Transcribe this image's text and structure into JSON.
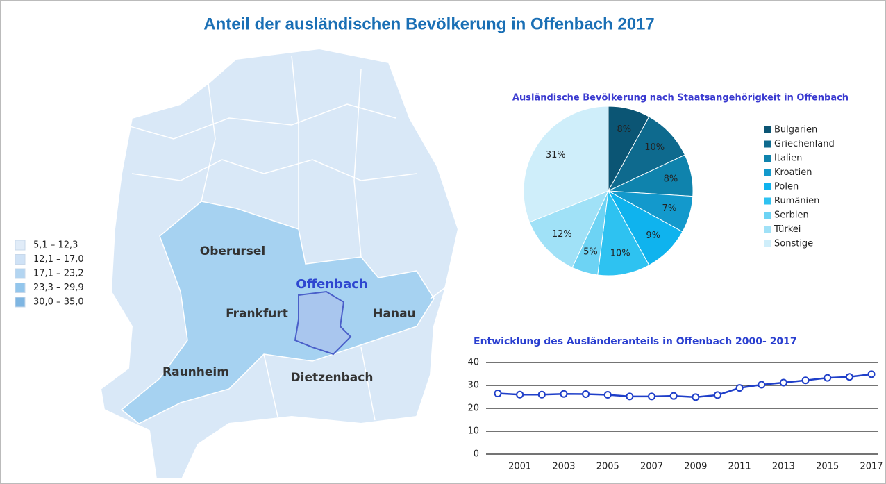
{
  "title": "Anteil der ausländischen Bevölkerung in Offenbach 2017",
  "map": {
    "legend": [
      {
        "label": "5,1 – 12,3",
        "color": "#e1ecf8"
      },
      {
        "label": "12,1 – 17,0",
        "color": "#cfe2f6"
      },
      {
        "label": "17,1 – 23,2",
        "color": "#b3d5f1"
      },
      {
        "label": "23,3 – 29,9",
        "color": "#93c6ec"
      },
      {
        "label": "30,0 – 35,0",
        "color": "#7fb6e2"
      }
    ],
    "places": [
      "Oberursel",
      "Frankfurt",
      "Offenbach",
      "Hanau",
      "Raunheim",
      "Dietzenbach"
    ]
  },
  "chart_data": [
    {
      "type": "pie",
      "title": "Ausländische Bevölkerung nach Staatsangehörigkeit in Offenbach",
      "categories": [
        "Bulgarien",
        "Griechenland",
        "Italien",
        "Kroatien",
        "Polen",
        "Rumänien",
        "Serbien",
        "Türkei",
        "Sonstige"
      ],
      "values": [
        8,
        10,
        8,
        7,
        9,
        10,
        5,
        12,
        31
      ],
      "value_labels": [
        "8%",
        "10%",
        "8%",
        "7%",
        "9%",
        "10%",
        "5%",
        "12%",
        "31%"
      ],
      "colors": [
        "#0b5574",
        "#0e6a8e",
        "#0f83ad",
        "#1399cc",
        "#0fb3ee",
        "#2ec2f1",
        "#6dd3f4",
        "#a0e1f7",
        "#cfeefa"
      ],
      "legend": "right"
    },
    {
      "type": "line",
      "title": "Entwicklung des Ausländeranteils in Offenbach 2000- 2017",
      "x": [
        2000,
        2001,
        2002,
        2003,
        2004,
        2005,
        2006,
        2007,
        2008,
        2009,
        2010,
        2011,
        2012,
        2013,
        2014,
        2015,
        2016,
        2017
      ],
      "values": [
        26.5,
        26,
        26,
        26.3,
        26.2,
        25.9,
        25.2,
        25.2,
        25.4,
        24.9,
        25.8,
        28.9,
        30.3,
        31.2,
        32.2,
        33.3,
        33.7,
        34.9
      ],
      "color": "#1f3fc9",
      "xlim": [
        2000,
        2017
      ],
      "xticks": [
        2001,
        2003,
        2005,
        2007,
        2009,
        2011,
        2013,
        2015,
        2017
      ],
      "ylim": [
        0,
        40
      ],
      "yticks": [
        0,
        10,
        20,
        30,
        40
      ],
      "grid": true
    }
  ]
}
